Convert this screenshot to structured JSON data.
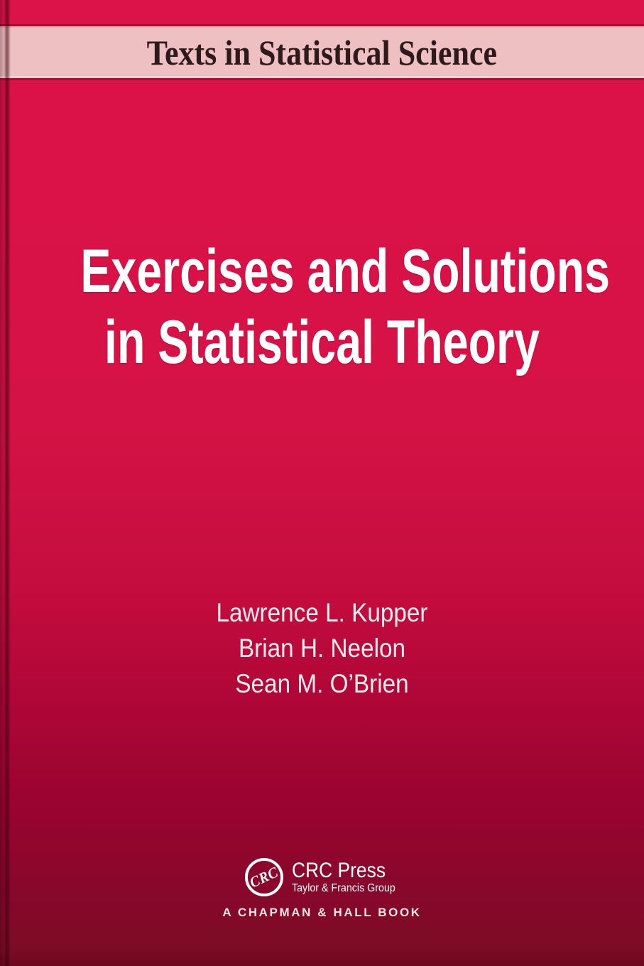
{
  "banner": {
    "series_title": "Texts in Statistical Science"
  },
  "title": {
    "line1": "Exercises and Solutions",
    "line2": "in Statistical Theory"
  },
  "authors": {
    "names": [
      "Lawrence L. Kupper",
      "Brian H. Neelon",
      "Sean M. O’Brien"
    ]
  },
  "publisher": {
    "logo_text": "CRC",
    "name": "CRC Press",
    "group": "Taylor & Francis Group",
    "imprint_line": "A CHAPMAN & HALL BOOK"
  },
  "colors": {
    "crimson_top": "#DC1348",
    "maroon_bottom": "#7D0C26",
    "band_pink": "#EFC0C2",
    "band_text": "#2D1A1C",
    "text_white": "#FFFFFF"
  }
}
